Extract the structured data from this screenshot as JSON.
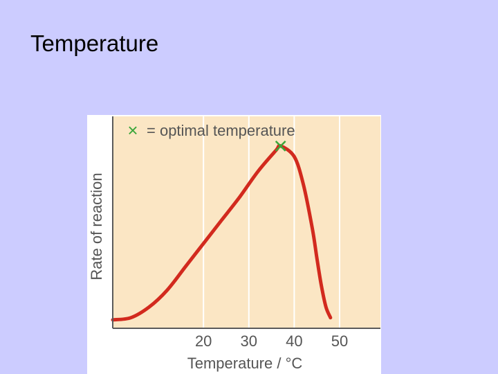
{
  "slide": {
    "title": "Temperature"
  },
  "chart_data": {
    "type": "line",
    "legend": {
      "marker": "×",
      "text": "= optimal temperature",
      "placement": "top"
    },
    "xlabel": "Temperature / °C",
    "ylabel": "Rate of reaction",
    "x_ticks": [
      20,
      30,
      40,
      50
    ],
    "xlim": [
      0,
      59
    ],
    "grid": true,
    "series": [
      {
        "x": [
          0,
          4,
          8,
          12,
          16,
          20,
          24,
          28,
          32,
          36,
          37,
          40,
          42,
          44,
          45,
          46,
          47,
          48
        ],
        "y": [
          0.04,
          0.05,
          0.1,
          0.18,
          0.29,
          0.4,
          0.51,
          0.62,
          0.74,
          0.84,
          0.86,
          0.81,
          0.68,
          0.47,
          0.33,
          0.2,
          0.1,
          0.05
        ],
        "color": "#d22a1e"
      }
    ],
    "optimum": {
      "x": 37,
      "y": 0.86,
      "color": "#3aa63a"
    },
    "colors": {
      "plot_background": "#fbe6c4",
      "grid": "#ffffff",
      "axis": "#5a5a5a",
      "text": "#555555"
    }
  }
}
